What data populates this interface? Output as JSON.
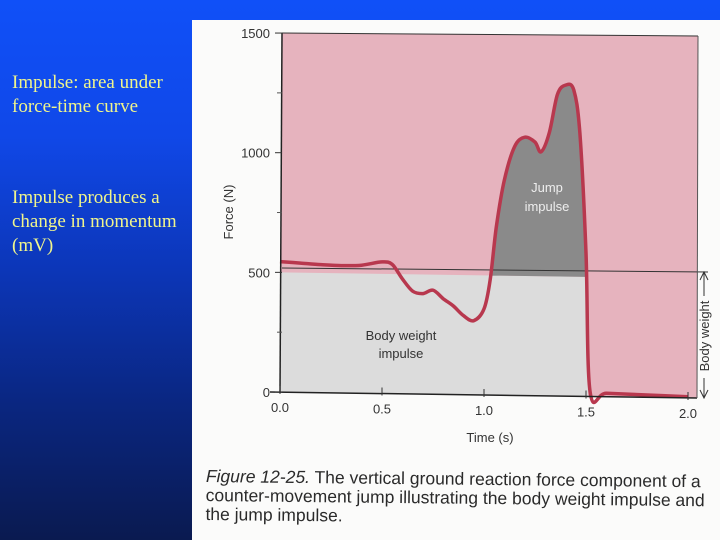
{
  "slide": {
    "bullets": [
      "Impulse:  area under force-time curve",
      "Impulse produces a change in momentum (mV)"
    ],
    "background_colors": {
      "top": "#1050f8",
      "bottom": "#0a1a50"
    },
    "text_color": "#f0f58c"
  },
  "figure": {
    "caption_label": "Figure 12-25.",
    "caption_text": " The vertical ground reaction force component of a counter-movement jump illustrating the body weight impulse and the jump impulse.",
    "annotations": {
      "jump_impulse_line1": "Jump",
      "jump_impulse_line2": "impulse",
      "body_weight_impulse_line1": "Body weight",
      "body_weight_impulse_line2": "impulse",
      "body_weight_bracket": "Body weight"
    }
  },
  "chart_data": {
    "type": "area",
    "title": "",
    "xlabel": "Time (s)",
    "ylabel": "Force (N)",
    "xlim": [
      0.0,
      2.0
    ],
    "ylim": [
      0,
      1500
    ],
    "x_ticks": [
      "0.0",
      "0.5",
      "1.0",
      "1.5",
      "2.0"
    ],
    "y_ticks": [
      "0",
      "500",
      "1000",
      "1500"
    ],
    "grid": false,
    "reference_line": {
      "name": "Body weight",
      "value": 500
    },
    "series": [
      {
        "name": "Vertical ground reaction force",
        "color": "#b8384e",
        "x": [
          0.0,
          0.1,
          0.2,
          0.3,
          0.4,
          0.5,
          0.55,
          0.6,
          0.65,
          0.7,
          0.75,
          0.8,
          0.85,
          0.9,
          0.95,
          1.0,
          1.03,
          1.06,
          1.1,
          1.15,
          1.2,
          1.25,
          1.28,
          1.32,
          1.36,
          1.4,
          1.44,
          1.47,
          1.5,
          1.52,
          1.6,
          1.8,
          2.0
        ],
        "values": [
          545,
          540,
          535,
          532,
          535,
          550,
          540,
          480,
          430,
          420,
          435,
          400,
          370,
          330,
          310,
          360,
          480,
          700,
          900,
          1040,
          1080,
          1060,
          1020,
          1100,
          1260,
          1300,
          1280,
          1100,
          600,
          20,
          15,
          10,
          5
        ]
      }
    ],
    "shaded_regions": [
      {
        "name": "Body weight impulse",
        "color": "#dcdcdc",
        "description": "area below body weight line (500 N)"
      },
      {
        "name": "Jump impulse",
        "color": "#8c8c8c",
        "description": "area of force curve above body weight line"
      },
      {
        "name": "Background above",
        "color": "#e8b4bf"
      }
    ]
  }
}
